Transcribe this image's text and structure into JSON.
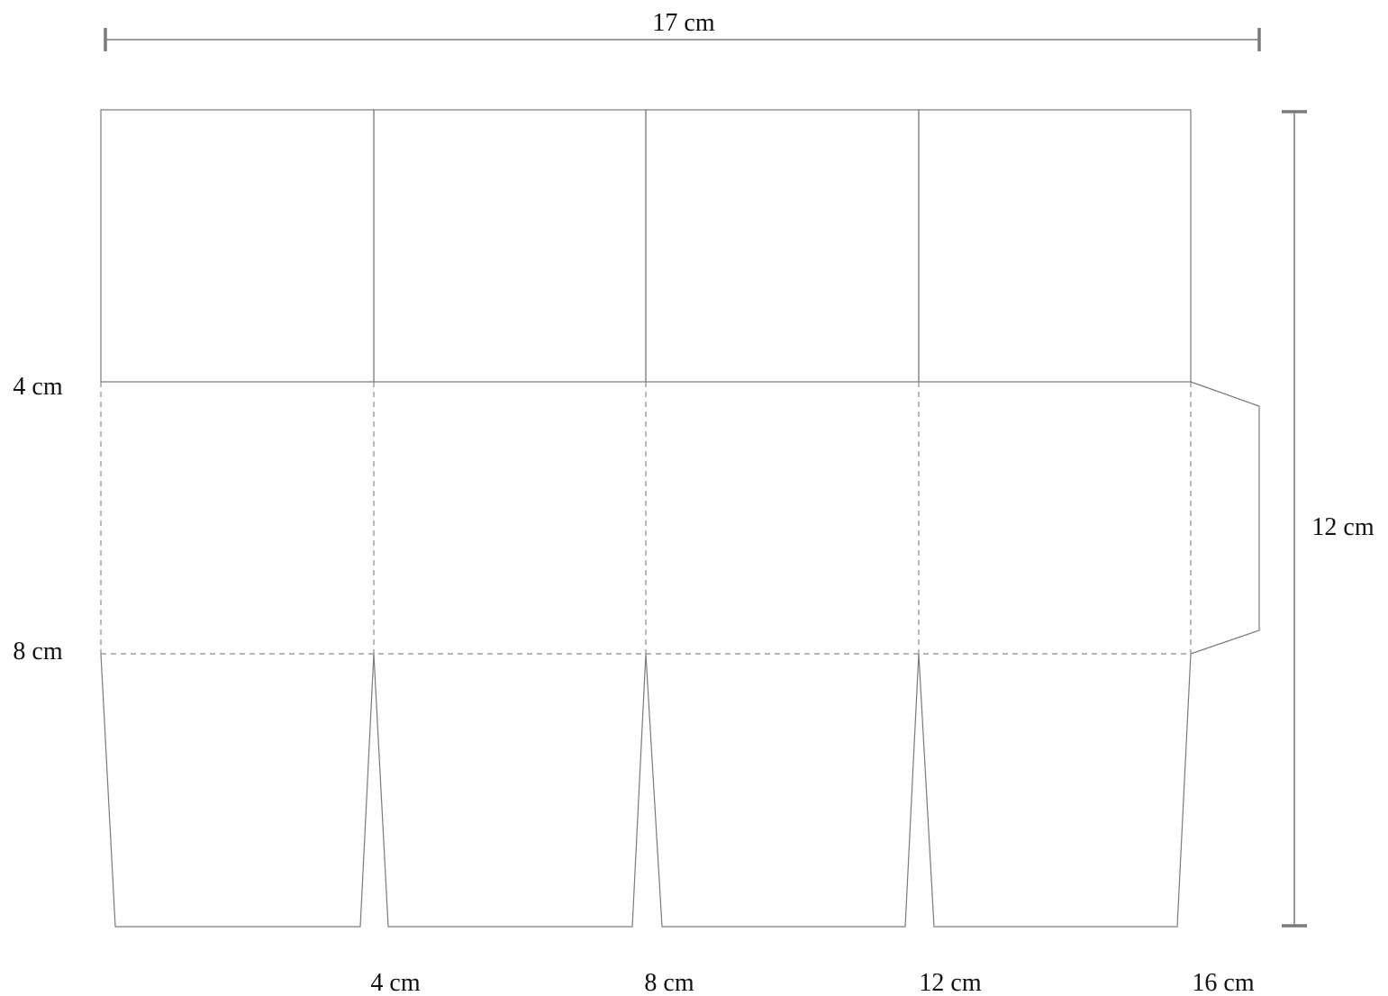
{
  "dimensions": {
    "width_label": "17 cm",
    "height_label": "12 cm"
  },
  "row_labels": [
    "4 cm",
    "8 cm"
  ],
  "column_labels": [
    "4 cm",
    "8 cm",
    "12 cm",
    "16 cm"
  ]
}
